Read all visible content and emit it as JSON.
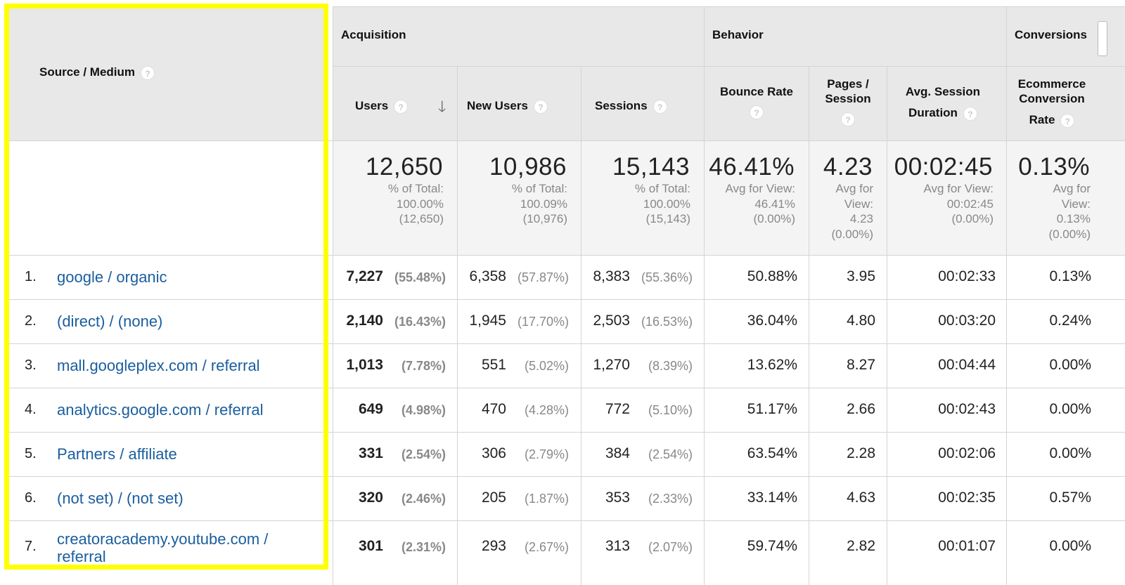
{
  "header": {
    "dimension_label": "Source / Medium",
    "groups": {
      "acquisition": "Acquisition",
      "behavior": "Behavior",
      "conversions": "Conversions"
    },
    "columns": {
      "users": "Users",
      "new_users": "New Users",
      "sessions": "Sessions",
      "bounce_rate": "Bounce Rate",
      "pages_session_1": "Pages /",
      "pages_session_2": "Session",
      "avg_duration_1": "Avg. Session",
      "avg_duration_2": "Duration",
      "ecom_1": "Ecommerce",
      "ecom_2": "Conversion",
      "ecom_3": "Rate"
    },
    "help_glyph": "?",
    "sort_glyph": "🡓"
  },
  "totals": {
    "users": {
      "value": "12,650",
      "l1": "% of Total:",
      "l2": "100.00%",
      "l3": "(12,650)"
    },
    "new_users": {
      "value": "10,986",
      "l1": "% of Total:",
      "l2": "100.09%",
      "l3": "(10,976)"
    },
    "sessions": {
      "value": "15,143",
      "l1": "% of Total:",
      "l2": "100.00%",
      "l3": "(15,143)"
    },
    "bounce_rate": {
      "value": "46.41%",
      "l1": "Avg for View:",
      "l2": "46.41%",
      "l3": "(0.00%)"
    },
    "pages_session": {
      "value": "4.23",
      "l1": "Avg for",
      "l2": "View:",
      "l3": "4.23",
      "l4": "(0.00%)"
    },
    "avg_duration": {
      "value": "00:02:45",
      "l1": "Avg for View:",
      "l2": "00:02:45",
      "l3": "(0.00%)"
    },
    "ecom_rate": {
      "value": "0.13%",
      "l1": "Avg for",
      "l2": "View:",
      "l3": "0.13%",
      "l4": "(0.00%)"
    }
  },
  "rows": [
    {
      "num": "1.",
      "source": "google / organic",
      "users": "7,227",
      "users_pct": "(55.48%)",
      "new_users": "6,358",
      "new_users_pct": "(57.87%)",
      "sessions": "8,383",
      "sessions_pct": "(55.36%)",
      "bounce": "50.88%",
      "pages": "3.95",
      "duration": "00:02:33",
      "ecom": "0.13%"
    },
    {
      "num": "2.",
      "source": "(direct) / (none)",
      "users": "2,140",
      "users_pct": "(16.43%)",
      "new_users": "1,945",
      "new_users_pct": "(17.70%)",
      "sessions": "2,503",
      "sessions_pct": "(16.53%)",
      "bounce": "36.04%",
      "pages": "4.80",
      "duration": "00:03:20",
      "ecom": "0.24%"
    },
    {
      "num": "3.",
      "source": "mall.googleplex.com / referral",
      "users": "1,013",
      "users_pct": "(7.78%)",
      "new_users": "551",
      "new_users_pct": "(5.02%)",
      "sessions": "1,270",
      "sessions_pct": "(8.39%)",
      "bounce": "13.62%",
      "pages": "8.27",
      "duration": "00:04:44",
      "ecom": "0.00%"
    },
    {
      "num": "4.",
      "source": "analytics.google.com / referral",
      "users": "649",
      "users_pct": "(4.98%)",
      "new_users": "470",
      "new_users_pct": "(4.28%)",
      "sessions": "772",
      "sessions_pct": "(5.10%)",
      "bounce": "51.17%",
      "pages": "2.66",
      "duration": "00:02:43",
      "ecom": "0.00%"
    },
    {
      "num": "5.",
      "source": "Partners / affiliate",
      "users": "331",
      "users_pct": "(2.54%)",
      "new_users": "306",
      "new_users_pct": "(2.79%)",
      "sessions": "384",
      "sessions_pct": "(2.54%)",
      "bounce": "63.54%",
      "pages": "2.28",
      "duration": "00:02:06",
      "ecom": "0.00%"
    },
    {
      "num": "6.",
      "source": "(not set) / (not set)",
      "users": "320",
      "users_pct": "(2.46%)",
      "new_users": "205",
      "new_users_pct": "(1.87%)",
      "sessions": "353",
      "sessions_pct": "(2.33%)",
      "bounce": "33.14%",
      "pages": "4.63",
      "duration": "00:02:35",
      "ecom": "0.57%"
    },
    {
      "num": "7.",
      "source_l1": "creatoracademy.youtube.com /",
      "source_l2": "referral",
      "users": "301",
      "users_pct": "(2.31%)",
      "new_users": "293",
      "new_users_pct": "(2.67%)",
      "sessions": "313",
      "sessions_pct": "(2.07%)",
      "bounce": "59.74%",
      "pages": "2.82",
      "duration": "00:01:07",
      "ecom": "0.00%"
    }
  ],
  "colors": {
    "highlight": "#ffff00",
    "link": "#1a5e9e",
    "header_bg": "#e8e8e8"
  }
}
